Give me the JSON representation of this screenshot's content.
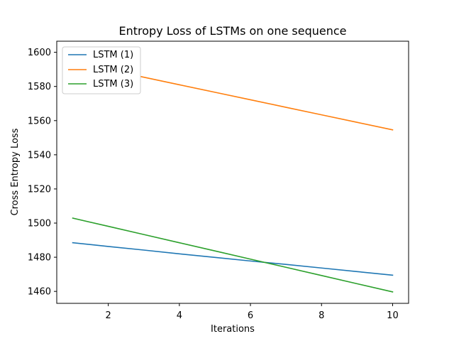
{
  "chart_data": {
    "type": "line",
    "title": "Entropy Loss of LSTMs on one sequence",
    "xlabel": "Iterations",
    "ylabel": "Cross Entropy Loss",
    "xlim": [
      0.55,
      10.45
    ],
    "ylim": [
      1453.0,
      1606.5
    ],
    "xticks": [
      2,
      4,
      6,
      8,
      10
    ],
    "yticks": [
      1460,
      1480,
      1500,
      1520,
      1540,
      1560,
      1580,
      1600
    ],
    "grid": false,
    "legend_position": "upper left",
    "series": [
      {
        "name": "LSTM (1)",
        "color": "#1f77b4",
        "x": [
          1,
          2,
          3,
          4,
          5,
          6,
          7,
          8,
          9,
          10
        ],
        "y": [
          1488.5,
          1486.3,
          1484.2,
          1482.0,
          1479.9,
          1477.8,
          1475.8,
          1473.7,
          1471.6,
          1469.5
        ]
      },
      {
        "name": "LSTM (2)",
        "color": "#ff7f0e",
        "x": [
          1,
          2,
          3,
          4,
          5,
          6,
          7,
          8,
          9,
          10
        ],
        "y": [
          1594.2,
          1589.8,
          1585.4,
          1581.0,
          1576.6,
          1572.2,
          1567.8,
          1563.4,
          1559.0,
          1554.6
        ]
      },
      {
        "name": "LSTM (3)",
        "color": "#2ca02c",
        "x": [
          1,
          2,
          3,
          4,
          5,
          6,
          7,
          8,
          9,
          10
        ],
        "y": [
          1502.9,
          1498.1,
          1493.3,
          1488.5,
          1483.7,
          1478.9,
          1474.1,
          1469.3,
          1464.5,
          1459.7
        ]
      }
    ]
  }
}
